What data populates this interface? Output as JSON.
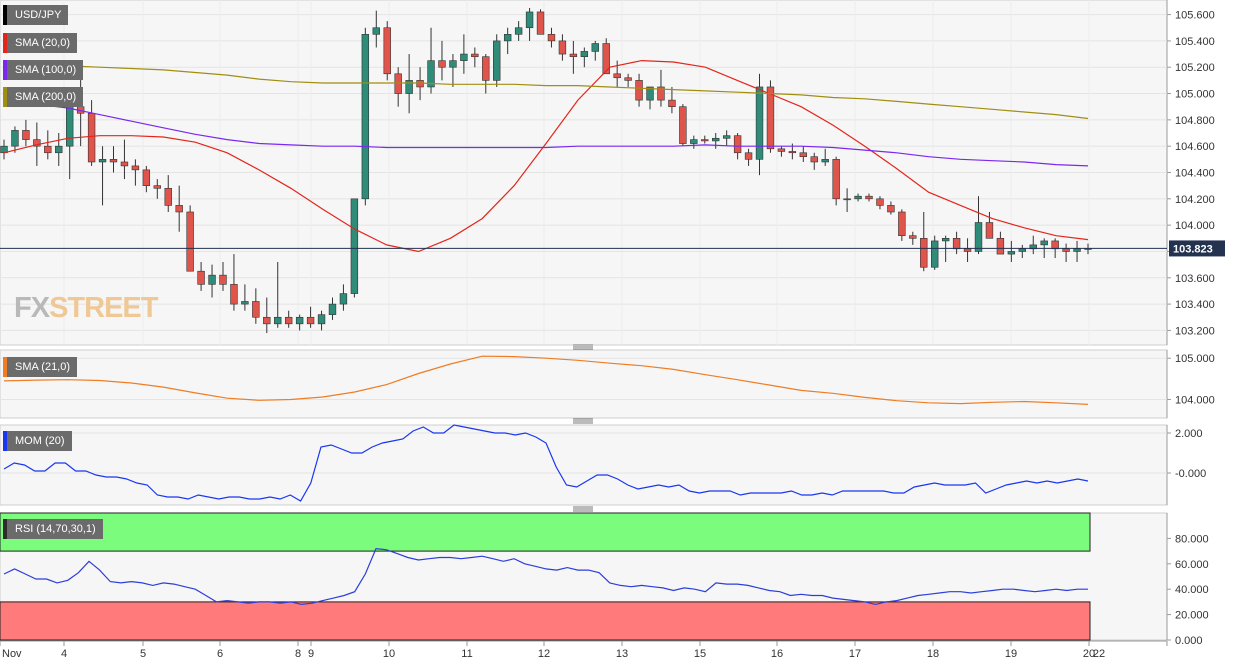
{
  "symbol": "USD/JPY",
  "brand": {
    "part1": "FX",
    "part2": "STREET"
  },
  "last_price_label": "103.823",
  "panels": {
    "main": {
      "legend": [
        {
          "label": "USD/JPY",
          "color": "#000000"
        },
        {
          "label": "SMA (20,0)",
          "color": "#e3261b"
        },
        {
          "label": "SMA (100,0)",
          "color": "#7a28f0"
        },
        {
          "label": "SMA (200,0)",
          "color": "#a08e12"
        }
      ]
    },
    "sma21": {
      "legend": {
        "label": "SMA (21,0)",
        "color": "#ee7d25"
      }
    },
    "mom": {
      "legend": {
        "label": "MOM (20)",
        "color": "#1a37f0"
      }
    },
    "rsi": {
      "legend": {
        "label": "RSI (14,70,30,1)",
        "color": "#2c2c2c"
      }
    }
  },
  "x_axis": {
    "ticks": [
      "Nov",
      "4",
      "5",
      "6",
      "8",
      "9",
      "10",
      "11",
      "12",
      "13",
      "15",
      "16",
      "17",
      "18",
      "19",
      "20",
      "22"
    ]
  },
  "chart_data": [
    {
      "type": "candlestick",
      "title": "USD/JPY",
      "y_ticks": [
        "105.600",
        "105.400",
        "105.200",
        "105.000",
        "104.800",
        "104.600",
        "104.400",
        "104.200",
        "104.000",
        "103.800",
        "103.600",
        "103.400",
        "103.200"
      ],
      "ylim": [
        103.15,
        105.65
      ],
      "current_price": 103.823,
      "ohlc": [
        [
          104.55,
          104.65,
          104.5,
          104.6
        ],
        [
          104.6,
          104.75,
          104.55,
          104.72
        ],
        [
          104.72,
          104.8,
          104.6,
          104.65
        ],
        [
          104.65,
          104.78,
          104.45,
          104.6
        ],
        [
          104.6,
          104.72,
          104.5,
          104.55
        ],
        [
          104.55,
          104.7,
          104.45,
          104.6
        ],
        [
          104.6,
          104.95,
          104.35,
          104.9
        ],
        [
          104.9,
          105.15,
          104.6,
          104.85
        ],
        [
          104.85,
          104.95,
          104.45,
          104.48
        ],
        [
          104.48,
          104.6,
          104.15,
          104.5
        ],
        [
          104.5,
          104.6,
          104.4,
          104.48
        ],
        [
          104.48,
          104.65,
          104.35,
          104.45
        ],
        [
          104.45,
          104.5,
          104.3,
          104.42
        ],
        [
          104.42,
          104.45,
          104.25,
          104.3
        ],
        [
          104.3,
          104.35,
          104.2,
          104.28
        ],
        [
          104.28,
          104.38,
          104.1,
          104.15
        ],
        [
          104.15,
          104.3,
          103.95,
          104.1
        ],
        [
          104.1,
          104.15,
          103.65,
          103.65
        ],
        [
          103.65,
          103.72,
          103.5,
          103.55
        ],
        [
          103.55,
          103.7,
          103.45,
          103.62
        ],
        [
          103.62,
          103.72,
          103.5,
          103.55
        ],
        [
          103.55,
          103.78,
          103.35,
          103.4
        ],
        [
          103.4,
          103.55,
          103.35,
          103.42
        ],
        [
          103.42,
          103.52,
          103.25,
          103.3
        ],
        [
          103.3,
          103.45,
          103.18,
          103.25
        ],
        [
          103.25,
          103.72,
          103.22,
          103.3
        ],
        [
          103.3,
          103.35,
          103.22,
          103.25
        ],
        [
          103.25,
          103.32,
          103.2,
          103.3
        ],
        [
          103.3,
          103.38,
          103.22,
          103.25
        ],
        [
          103.25,
          103.35,
          103.2,
          103.32
        ],
        [
          103.32,
          103.45,
          103.28,
          103.4
        ],
        [
          103.4,
          103.55,
          103.35,
          103.48
        ],
        [
          103.48,
          104.2,
          103.45,
          104.2
        ],
        [
          104.2,
          105.5,
          104.15,
          105.45
        ],
        [
          105.45,
          105.63,
          105.35,
          105.5
        ],
        [
          105.5,
          105.55,
          105.1,
          105.15
        ],
        [
          105.15,
          105.2,
          104.9,
          105.0
        ],
        [
          105.0,
          105.3,
          104.85,
          105.1
        ],
        [
          105.1,
          105.2,
          104.95,
          105.05
        ],
        [
          105.05,
          105.5,
          105.0,
          105.25
        ],
        [
          105.25,
          105.4,
          105.1,
          105.2
        ],
        [
          105.2,
          105.3,
          105.05,
          105.25
        ],
        [
          105.25,
          105.45,
          105.15,
          105.3
        ],
        [
          105.3,
          105.35,
          105.2,
          105.28
        ],
        [
          105.28,
          105.3,
          105.0,
          105.1
        ],
        [
          105.1,
          105.45,
          105.05,
          105.4
        ],
        [
          105.4,
          105.5,
          105.3,
          105.45
        ],
        [
          105.45,
          105.55,
          105.4,
          105.5
        ],
        [
          105.5,
          105.65,
          105.4,
          105.62
        ],
        [
          105.62,
          105.64,
          105.45,
          105.45
        ],
        [
          105.45,
          105.5,
          105.35,
          105.4
        ],
        [
          105.4,
          105.45,
          105.25,
          105.3
        ],
        [
          105.3,
          105.4,
          105.15,
          105.28
        ],
        [
          105.28,
          105.35,
          105.2,
          105.32
        ],
        [
          105.32,
          105.4,
          105.25,
          105.38
        ],
        [
          105.38,
          105.42,
          105.15,
          105.15
        ],
        [
          105.15,
          105.25,
          105.05,
          105.12
        ],
        [
          105.12,
          105.15,
          105.05,
          105.1
        ],
        [
          105.1,
          105.15,
          104.9,
          104.95
        ],
        [
          104.95,
          105.05,
          104.88,
          105.05
        ],
        [
          105.05,
          105.18,
          104.9,
          104.95
        ],
        [
          104.95,
          105.05,
          104.85,
          104.9
        ],
        [
          104.9,
          104.92,
          104.6,
          104.62
        ],
        [
          104.62,
          104.68,
          104.58,
          104.65
        ],
        [
          104.65,
          104.68,
          104.62,
          104.64
        ],
        [
          104.64,
          104.7,
          104.58,
          104.66
        ],
        [
          104.66,
          104.72,
          104.6,
          104.68
        ],
        [
          104.68,
          104.7,
          104.5,
          104.55
        ],
        [
          104.55,
          104.58,
          104.45,
          104.5
        ],
        [
          104.5,
          105.15,
          104.38,
          105.05
        ],
        [
          105.05,
          105.1,
          104.55,
          104.58
        ],
        [
          104.58,
          104.6,
          104.52,
          104.56
        ],
        [
          104.56,
          104.62,
          104.5,
          104.55
        ],
        [
          104.55,
          104.6,
          104.48,
          104.52
        ],
        [
          104.52,
          104.55,
          104.42,
          104.48
        ],
        [
          104.48,
          104.58,
          104.45,
          104.5
        ],
        [
          104.5,
          104.52,
          104.15,
          104.2
        ],
        [
          104.2,
          104.28,
          104.1,
          104.2
        ],
        [
          104.2,
          104.24,
          104.18,
          104.22
        ],
        [
          104.22,
          104.24,
          104.18,
          104.2
        ],
        [
          104.2,
          104.22,
          104.12,
          104.15
        ],
        [
          104.15,
          104.18,
          104.08,
          104.1
        ],
        [
          104.1,
          104.12,
          103.88,
          103.92
        ],
        [
          103.92,
          103.95,
          103.85,
          103.9
        ],
        [
          103.9,
          104.1,
          103.65,
          103.68
        ],
        [
          103.68,
          103.92,
          103.66,
          103.88
        ],
        [
          103.88,
          103.92,
          103.72,
          103.9
        ],
        [
          103.9,
          103.95,
          103.78,
          103.82
        ],
        [
          103.82,
          103.9,
          103.72,
          103.8
        ],
        [
          103.8,
          104.22,
          103.78,
          104.02
        ],
        [
          104.02,
          104.1,
          103.9,
          103.9
        ],
        [
          103.9,
          103.95,
          103.78,
          103.78
        ],
        [
          103.78,
          103.88,
          103.72,
          103.8
        ],
        [
          103.8,
          103.85,
          103.75,
          103.82
        ],
        [
          103.82,
          103.92,
          103.78,
          103.85
        ],
        [
          103.85,
          103.9,
          103.75,
          103.88
        ],
        [
          103.88,
          103.9,
          103.75,
          103.82
        ],
        [
          103.82,
          103.86,
          103.72,
          103.8
        ],
        [
          103.8,
          103.88,
          103.72,
          103.82
        ],
        [
          103.82,
          103.86,
          103.78,
          103.823
        ]
      ],
      "series": [
        {
          "name": "SMA (20,0)",
          "values": [
            104.55,
            104.61,
            104.66,
            104.68,
            104.68,
            104.67,
            104.63,
            104.55,
            104.42,
            104.28,
            104.12,
            103.97,
            103.85,
            103.8,
            103.9,
            104.05,
            104.3,
            104.62,
            104.95,
            105.2,
            105.25,
            105.24,
            105.2,
            105.1,
            105.0,
            104.9,
            104.76,
            104.6,
            104.43,
            104.25,
            104.15,
            104.05,
            103.98,
            103.92,
            103.89
          ]
        },
        {
          "name": "SMA (100,0)",
          "values": [
            104.93,
            104.92,
            104.89,
            104.84,
            104.79,
            104.74,
            104.69,
            104.65,
            104.62,
            104.61,
            104.6,
            104.6,
            104.59,
            104.59,
            104.59,
            104.59,
            104.59,
            104.59,
            104.6,
            104.6,
            104.6,
            104.6,
            104.61,
            104.6,
            104.6,
            104.6,
            104.59,
            104.57,
            104.55,
            104.52,
            104.5,
            104.49,
            104.48,
            104.46,
            104.45
          ]
        },
        {
          "name": "SMA (200,0)",
          "values": [
            105.2,
            105.21,
            105.21,
            105.2,
            105.19,
            105.18,
            105.16,
            105.14,
            105.11,
            105.09,
            105.08,
            105.08,
            105.08,
            105.08,
            105.07,
            105.07,
            105.07,
            105.06,
            105.06,
            105.05,
            105.04,
            105.03,
            105.02,
            105.01,
            105.0,
            104.99,
            104.97,
            104.96,
            104.94,
            104.92,
            104.9,
            104.88,
            104.86,
            104.84,
            104.81
          ]
        }
      ]
    },
    {
      "type": "line",
      "title": "SMA (21,0)",
      "y_ticks": [
        "105.000",
        "104.000"
      ],
      "ylim": [
        103.55,
        105.2
      ],
      "series": [
        {
          "name": "SMA (21,0)",
          "values": [
            104.45,
            104.47,
            104.48,
            104.46,
            104.4,
            104.3,
            104.16,
            104.03,
            103.98,
            104.0,
            104.06,
            104.18,
            104.36,
            104.63,
            104.86,
            105.05,
            105.04,
            105.0,
            104.95,
            104.88,
            104.82,
            104.73,
            104.6,
            104.48,
            104.35,
            104.22,
            104.15,
            104.05,
            103.97,
            103.92,
            103.9,
            103.93,
            103.95,
            103.92,
            103.88
          ]
        }
      ]
    },
    {
      "type": "line",
      "title": "MOM (20)",
      "y_ticks": [
        "2.000",
        "-0.000"
      ],
      "ylim": [
        -1.6,
        2.4
      ],
      "series": [
        {
          "name": "MOM (20)",
          "values": [
            0.2,
            0.5,
            0.4,
            0.1,
            0.1,
            0.5,
            0.5,
            0.1,
            0.1,
            -0.1,
            -0.2,
            -0.2,
            -0.3,
            -0.5,
            -0.6,
            -1.1,
            -1.2,
            -1.2,
            -1.3,
            -1.1,
            -1.2,
            -1.3,
            -1.2,
            -1.2,
            -1.3,
            -1.3,
            -1.2,
            -1.3,
            -1.1,
            -1.4,
            -0.5,
            1.3,
            1.4,
            1.2,
            1.0,
            1.0,
            1.3,
            1.5,
            1.6,
            1.7,
            2.1,
            2.3,
            2.0,
            2.0,
            2.4,
            2.3,
            2.2,
            2.1,
            2.0,
            2.0,
            1.9,
            2.0,
            1.8,
            1.5,
            0.3,
            -0.6,
            -0.7,
            -0.4,
            -0.1,
            -0.1,
            -0.3,
            -0.6,
            -0.8,
            -0.7,
            -0.6,
            -0.7,
            -0.6,
            -0.9,
            -1.0,
            -0.9,
            -0.9,
            -0.9,
            -1.1,
            -1.0,
            -1.0,
            -1.0,
            -1.0,
            -0.9,
            -1.1,
            -1.1,
            -1.0,
            -1.1,
            -0.9,
            -0.9,
            -0.9,
            -0.9,
            -0.9,
            -1.0,
            -1.0,
            -0.7,
            -0.6,
            -0.5,
            -0.6,
            -0.6,
            -0.6,
            -0.5,
            -1.0,
            -0.8,
            -0.6,
            -0.5,
            -0.4,
            -0.5,
            -0.4,
            -0.5,
            -0.4,
            -0.3,
            -0.4
          ]
        }
      ]
    },
    {
      "type": "line",
      "title": "RSI (14,70,30,1)",
      "y_ticks": [
        "80.000",
        "60.000",
        "40.000",
        "20.000",
        "0.000"
      ],
      "ylim": [
        0,
        100
      ],
      "bands": [
        {
          "from": 70,
          "to": 100,
          "color": "#7cfc7c"
        },
        {
          "from": 0,
          "to": 30,
          "color": "#ff7a7a"
        }
      ],
      "series": [
        {
          "name": "RSI (14,70,30,1)",
          "values": [
            52,
            56,
            52,
            48,
            48,
            45,
            47,
            53,
            62,
            55,
            46,
            45,
            46,
            45,
            43,
            45,
            44,
            42,
            40,
            35,
            30,
            31,
            30,
            29,
            30,
            30,
            29,
            30,
            28,
            29,
            31,
            33,
            35,
            38,
            52,
            72,
            71,
            68,
            65,
            63,
            64,
            65,
            65,
            64,
            65,
            66,
            64,
            62,
            64,
            60,
            58,
            56,
            55,
            57,
            55,
            55,
            53,
            45,
            43,
            42,
            43,
            42,
            41,
            39,
            41,
            40,
            38,
            45,
            44,
            44,
            43,
            41,
            39,
            38,
            35,
            36,
            35,
            35,
            33,
            32,
            31,
            30,
            28,
            30,
            31,
            33,
            35,
            36,
            37,
            38,
            38,
            37,
            38,
            39,
            40,
            40,
            39,
            38,
            39,
            40,
            39,
            40,
            40
          ]
        }
      ]
    }
  ]
}
